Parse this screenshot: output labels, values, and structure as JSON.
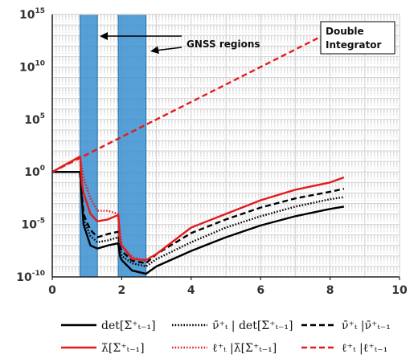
{
  "chart_data": {
    "type": "line",
    "title": "",
    "xlabel": "",
    "ylabel": "",
    "xlim": [
      0,
      10
    ],
    "ylim": [
      1e-10,
      1000000000000000.0
    ],
    "y_scale": "log",
    "grid": true,
    "x_ticks": [
      "0",
      "2",
      "4",
      "6",
      "8",
      "10"
    ],
    "y_ticks": [
      {
        "base": "10",
        "exp": "-10",
        "value": 1e-10
      },
      {
        "base": "10",
        "exp": "-5",
        "value": 1e-05
      },
      {
        "base": "10",
        "exp": "0",
        "value": 1
      },
      {
        "base": "10",
        "exp": "5",
        "value": 100000.0
      },
      {
        "base": "10",
        "exp": "10",
        "value": 10000000000.0
      },
      {
        "base": "10",
        "exp": "15",
        "value": 1000000000000000.0
      }
    ],
    "shaded_regions": [
      {
        "x0": 0.8,
        "x1": 1.3
      },
      {
        "x0": 1.9,
        "x1": 2.7
      }
    ],
    "annotations": {
      "gnss": "GNSS regions",
      "box_line1": "Double",
      "box_line2": "Integrator"
    },
    "legend": [
      {
        "label": "det[Σ⁺ₜ₋₁]",
        "color": "#000000",
        "dash": "solid"
      },
      {
        "label": "ν̄⁺ₜ | det[Σ⁺ₜ₋₁]",
        "color": "#000000",
        "dash": "dotted"
      },
      {
        "label": "ν̄⁺ₜ |ν̄⁺ₜ₋₁",
        "color": "#000000",
        "dash": "dashed"
      },
      {
        "label": "λ̄[Σ⁺ₜ₋₁]",
        "color": "#e41a1c",
        "dash": "solid"
      },
      {
        "label": "ℓ⁺ₜ |λ̄[Σ⁺ₜ₋₁]",
        "color": "#e41a1c",
        "dash": "dotted"
      },
      {
        "label": "ℓ⁺ₜ |ℓ⁺ₜ₋₁",
        "color": "#e41a1c",
        "dash": "dashed"
      }
    ],
    "series": [
      {
        "color": "#000000",
        "dash": "solid",
        "x": [
          0,
          0.8,
          0.85,
          0.9,
          1.0,
          1.1,
          1.3,
          1.6,
          1.9,
          1.95,
          2.0,
          2.3,
          2.7,
          3,
          4,
          5,
          6,
          7,
          8,
          8.4
        ],
        "y": [
          1,
          1,
          0.003,
          1e-05,
          1e-06,
          1e-07,
          5e-08,
          1e-07,
          1.6e-07,
          1e-08,
          4e-09,
          4e-10,
          2e-10,
          1e-09,
          3e-08,
          6e-07,
          8e-06,
          6e-05,
          0.0003,
          0.0005
        ]
      },
      {
        "color": "#000000",
        "dash": "dotted",
        "x": [
          0,
          0.8,
          0.85,
          0.9,
          1.0,
          1.1,
          1.3,
          1.6,
          1.9,
          1.95,
          2.0,
          2.3,
          2.7,
          3,
          4,
          5,
          6,
          7,
          8,
          8.4
        ],
        "y": [
          1,
          1,
          0.005,
          3e-05,
          5e-06,
          8e-07,
          2e-07,
          3e-07,
          6e-07,
          4e-08,
          1e-08,
          2e-09,
          1e-09,
          5e-09,
          2e-07,
          5e-06,
          6e-05,
          0.0005,
          0.0025,
          0.004
        ]
      },
      {
        "color": "#000000",
        "dash": "dashed",
        "x": [
          0,
          0.8,
          0.85,
          0.9,
          1.0,
          1.1,
          1.3,
          1.6,
          1.9,
          1.95,
          2.0,
          2.3,
          2.7,
          3,
          4,
          5,
          6,
          7,
          8,
          8.4
        ],
        "y": [
          1,
          1,
          0.01,
          0.0001,
          1.5e-05,
          3e-06,
          6e-07,
          1.2e-06,
          2e-06,
          8e-08,
          3e-08,
          3.5e-09,
          2e-09,
          1.5e-08,
          1.5e-06,
          3e-05,
          0.0004,
          0.003,
          0.013,
          0.025
        ]
      },
      {
        "color": "#e41a1c",
        "dash": "solid",
        "x": [
          0,
          0.8,
          0.85,
          0.9,
          1.0,
          1.1,
          1.3,
          1.6,
          1.9,
          1.95,
          2.0,
          2.3,
          2.7,
          3,
          4,
          5,
          6,
          7,
          8,
          8.4
        ],
        "y": [
          1,
          30,
          0.1,
          0.01,
          0.001,
          0.0001,
          2e-05,
          3e-05,
          8e-05,
          3e-07,
          1e-07,
          5e-09,
          4e-09,
          1.5e-08,
          5e-06,
          0.0001,
          0.002,
          0.02,
          0.1,
          0.3
        ]
      },
      {
        "color": "#e41a1c",
        "dash": "dotted",
        "x": [
          0.8,
          0.85,
          0.9,
          1.0,
          1.1,
          1.3,
          1.6,
          1.9,
          1.95,
          2.0,
          2.3,
          2.7
        ],
        "y": [
          30,
          3,
          0.2,
          0.03,
          0.003,
          0.0002,
          0.0002,
          0.0001,
          2e-06,
          1e-07,
          8e-09,
          3e-09
        ]
      },
      {
        "color": "#e41a1c",
        "dash": "dashed",
        "x": [
          0,
          8.4
        ],
        "y": [
          1,
          100000000000000.0
        ]
      }
    ]
  }
}
